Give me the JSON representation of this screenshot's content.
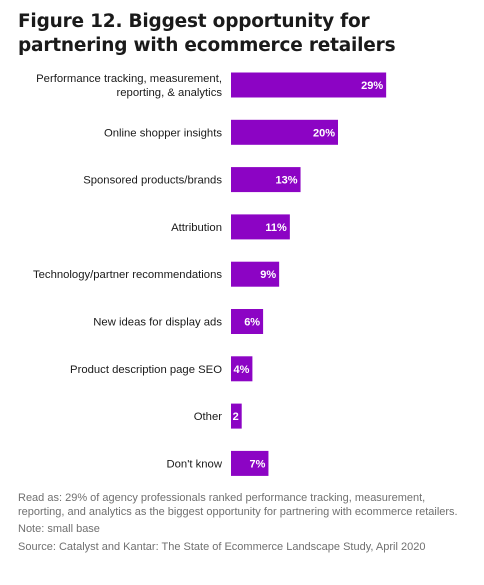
{
  "title_lines": [
    "Figure 12. Biggest opportunity for",
    "partnering with ecommerce retailers"
  ],
  "chart_data": {
    "type": "bar",
    "orientation": "horizontal",
    "bar_color": "#8c04c4",
    "categories": [
      [
        "Performance tracking, measurement,",
        "reporting, & analytics"
      ],
      [
        "Online shopper insights"
      ],
      [
        "Sponsored products/brands"
      ],
      [
        "Attribution"
      ],
      [
        "Technology/partner recommendations"
      ],
      [
        "New ideas for display ads"
      ],
      [
        "Product description page SEO"
      ],
      [
        "Other"
      ],
      [
        "Don't know"
      ]
    ],
    "values": [
      29,
      20,
      13,
      11,
      9,
      6,
      4,
      2,
      7
    ],
    "value_labels": [
      "29%",
      "20%",
      "13%",
      "11%",
      "9%",
      "6%",
      "4%",
      "2",
      "7%"
    ]
  },
  "notes": {
    "read_as": "Read as: 29% of agency professionals ranked performance tracking, measurement, reporting, and analytics as the biggest opportunity for partnering with ecommerce retailers.",
    "note": "Note: small base",
    "source": "Source: Catalyst and Kantar: The State of Ecommerce Landscape Study, April 2020"
  }
}
